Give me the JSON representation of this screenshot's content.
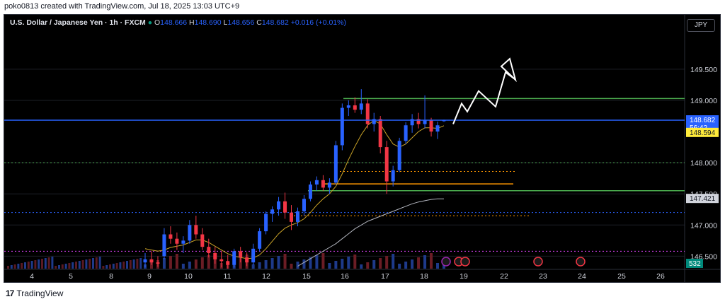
{
  "header": {
    "text": "poko0813 created with TradingView.com, Jul 18, 2025 13:03 UTC+9"
  },
  "legend": {
    "symbol": "U.S. Dollar / Japanese Yen · 1h · FXCM",
    "o_label": "O",
    "o_value": "148.666",
    "h_label": "H",
    "h_value": "148.690",
    "l_label": "L",
    "l_value": "148.656",
    "c_label": "C",
    "c_value": "148.682",
    "change": "+0.016 (+0.01%)"
  },
  "currency_button": "JPY",
  "footer": {
    "brand": "TradingView"
  },
  "colors": {
    "up": "#2962ff",
    "down": "#f23645",
    "price_line": "#2962ff",
    "resistance": "#4caf50",
    "support": "#ff9800",
    "ma_fast": "#c9a227",
    "ma_slow": "#b2b5be",
    "dotted_green": "#4caf50",
    "dotted_blue": "#2962ff",
    "dotted_magenta": "#e040fb"
  },
  "chart_data": {
    "type": "candlestick",
    "y_ticks": [
      "149.500",
      "149.000",
      "148.000",
      "147.500",
      "147.000",
      "146.500"
    ],
    "y_tick_values": [
      149.5,
      149.0,
      148.0,
      147.5,
      147.0,
      146.5
    ],
    "ylim": [
      146.3,
      150.1
    ],
    "x_ticks": [
      "4",
      "5",
      "8",
      "9",
      "10",
      "11",
      "12",
      "15",
      "16",
      "17",
      "18",
      "19",
      "22",
      "23",
      "24",
      "25",
      "26"
    ],
    "price_label": {
      "value": "148.682",
      "countdown": "56:42"
    },
    "ma_fast_label": "148.594",
    "ma_slow_label": "147.421",
    "volume_label": "532",
    "levels": {
      "resistance": 149.03,
      "support_green": 147.55,
      "support_orange": 147.66,
      "orange_dotted_upper": 147.86,
      "orange_dotted_lower": 147.15,
      "green_dotted": 148.0,
      "blue_dotted": 147.2,
      "magenta_dotted": 146.58
    },
    "projection_path": [
      148.62,
      148.95,
      148.82,
      149.15,
      148.9,
      149.45,
      149.35
    ],
    "candles": [
      {
        "o": 146.4,
        "h": 146.55,
        "l": 146.32,
        "c": 146.45
      },
      {
        "o": 146.45,
        "h": 146.58,
        "l": 146.36,
        "c": 146.4
      },
      {
        "o": 146.4,
        "h": 146.5,
        "l": 146.33,
        "c": 146.38
      },
      {
        "o": 146.5,
        "h": 146.95,
        "l": 146.45,
        "c": 146.85
      },
      {
        "o": 146.85,
        "h": 146.98,
        "l": 146.7,
        "c": 146.78
      },
      {
        "o": 146.78,
        "h": 146.88,
        "l": 146.6,
        "c": 146.7
      },
      {
        "o": 146.7,
        "h": 146.82,
        "l": 146.55,
        "c": 146.75
      },
      {
        "o": 146.75,
        "h": 147.08,
        "l": 146.7,
        "c": 147.0
      },
      {
        "o": 147.0,
        "h": 147.15,
        "l": 146.78,
        "c": 146.85
      },
      {
        "o": 146.85,
        "h": 146.95,
        "l": 146.6,
        "c": 146.65
      },
      {
        "o": 146.65,
        "h": 146.78,
        "l": 146.48,
        "c": 146.55
      },
      {
        "o": 146.55,
        "h": 146.65,
        "l": 146.38,
        "c": 146.45
      },
      {
        "o": 146.45,
        "h": 146.58,
        "l": 146.32,
        "c": 146.42
      },
      {
        "o": 146.42,
        "h": 146.52,
        "l": 146.3,
        "c": 146.36
      },
      {
        "o": 146.36,
        "h": 146.62,
        "l": 146.32,
        "c": 146.58
      },
      {
        "o": 146.58,
        "h": 146.65,
        "l": 146.4,
        "c": 146.48
      },
      {
        "o": 146.48,
        "h": 146.56,
        "l": 146.34,
        "c": 146.4
      },
      {
        "o": 146.4,
        "h": 146.7,
        "l": 146.36,
        "c": 146.62
      },
      {
        "o": 146.62,
        "h": 146.95,
        "l": 146.58,
        "c": 146.9
      },
      {
        "o": 146.9,
        "h": 147.22,
        "l": 146.85,
        "c": 147.18
      },
      {
        "o": 147.18,
        "h": 147.3,
        "l": 147.05,
        "c": 147.25
      },
      {
        "o": 147.25,
        "h": 147.45,
        "l": 147.15,
        "c": 147.38
      },
      {
        "o": 147.38,
        "h": 147.52,
        "l": 147.1,
        "c": 147.2
      },
      {
        "o": 147.2,
        "h": 147.32,
        "l": 146.92,
        "c": 147.05
      },
      {
        "o": 147.05,
        "h": 147.28,
        "l": 146.98,
        "c": 147.22
      },
      {
        "o": 147.22,
        "h": 147.48,
        "l": 147.15,
        "c": 147.42
      },
      {
        "o": 147.42,
        "h": 147.7,
        "l": 147.38,
        "c": 147.65
      },
      {
        "o": 147.65,
        "h": 147.78,
        "l": 147.55,
        "c": 147.72
      },
      {
        "o": 147.72,
        "h": 147.8,
        "l": 147.55,
        "c": 147.6
      },
      {
        "o": 147.6,
        "h": 147.75,
        "l": 147.5,
        "c": 147.68
      },
      {
        "o": 147.68,
        "h": 148.35,
        "l": 147.65,
        "c": 148.28
      },
      {
        "o": 148.28,
        "h": 148.95,
        "l": 148.2,
        "c": 148.88
      },
      {
        "o": 148.88,
        "h": 149.0,
        "l": 148.75,
        "c": 148.92
      },
      {
        "o": 148.92,
        "h": 149.05,
        "l": 148.8,
        "c": 148.85
      },
      {
        "o": 148.85,
        "h": 149.18,
        "l": 148.78,
        "c": 148.95
      },
      {
        "o": 148.95,
        "h": 149.02,
        "l": 148.55,
        "c": 148.62
      },
      {
        "o": 148.62,
        "h": 148.8,
        "l": 148.5,
        "c": 148.7
      },
      {
        "o": 148.7,
        "h": 148.75,
        "l": 148.15,
        "c": 148.25
      },
      {
        "o": 148.25,
        "h": 148.35,
        "l": 147.5,
        "c": 147.7
      },
      {
        "o": 147.7,
        "h": 147.95,
        "l": 147.62,
        "c": 147.88
      },
      {
        "o": 147.88,
        "h": 148.4,
        "l": 147.85,
        "c": 148.35
      },
      {
        "o": 148.35,
        "h": 148.65,
        "l": 148.3,
        "c": 148.6
      },
      {
        "o": 148.6,
        "h": 148.78,
        "l": 148.48,
        "c": 148.7
      },
      {
        "o": 148.7,
        "h": 148.8,
        "l": 148.55,
        "c": 148.62
      },
      {
        "o": 148.62,
        "h": 149.08,
        "l": 148.55,
        "c": 148.68
      },
      {
        "o": 148.68,
        "h": 148.72,
        "l": 148.42,
        "c": 148.5
      },
      {
        "o": 148.5,
        "h": 148.66,
        "l": 148.38,
        "c": 148.6
      },
      {
        "o": 148.666,
        "h": 148.69,
        "l": 148.656,
        "c": 148.682
      }
    ],
    "ma_fast": [
      146.62,
      146.6,
      146.58,
      146.6,
      146.64,
      146.66,
      146.68,
      146.72,
      146.76,
      146.76,
      146.72,
      146.66,
      146.6,
      146.54,
      146.5,
      146.48,
      146.46,
      146.47,
      146.52,
      146.62,
      146.74,
      146.86,
      146.95,
      147.0,
      147.04,
      147.1,
      147.2,
      147.32,
      147.42,
      147.5,
      147.62,
      147.82,
      148.05,
      148.26,
      148.45,
      148.6,
      148.68,
      148.62,
      148.45,
      148.3,
      148.25,
      148.3,
      148.4,
      148.5,
      148.56,
      148.56,
      148.55,
      148.594
    ],
    "ma_slow": [
      null,
      null,
      null,
      null,
      null,
      null,
      null,
      null,
      null,
      null,
      null,
      null,
      null,
      null,
      null,
      null,
      null,
      null,
      null,
      null,
      null,
      null,
      null,
      null,
      146.34,
      146.4,
      146.46,
      146.52,
      146.58,
      146.64,
      146.7,
      146.78,
      146.86,
      146.94,
      147.0,
      147.06,
      147.1,
      147.14,
      147.18,
      147.22,
      147.26,
      147.3,
      147.34,
      147.37,
      147.39,
      147.41,
      147.42,
      147.421
    ]
  }
}
